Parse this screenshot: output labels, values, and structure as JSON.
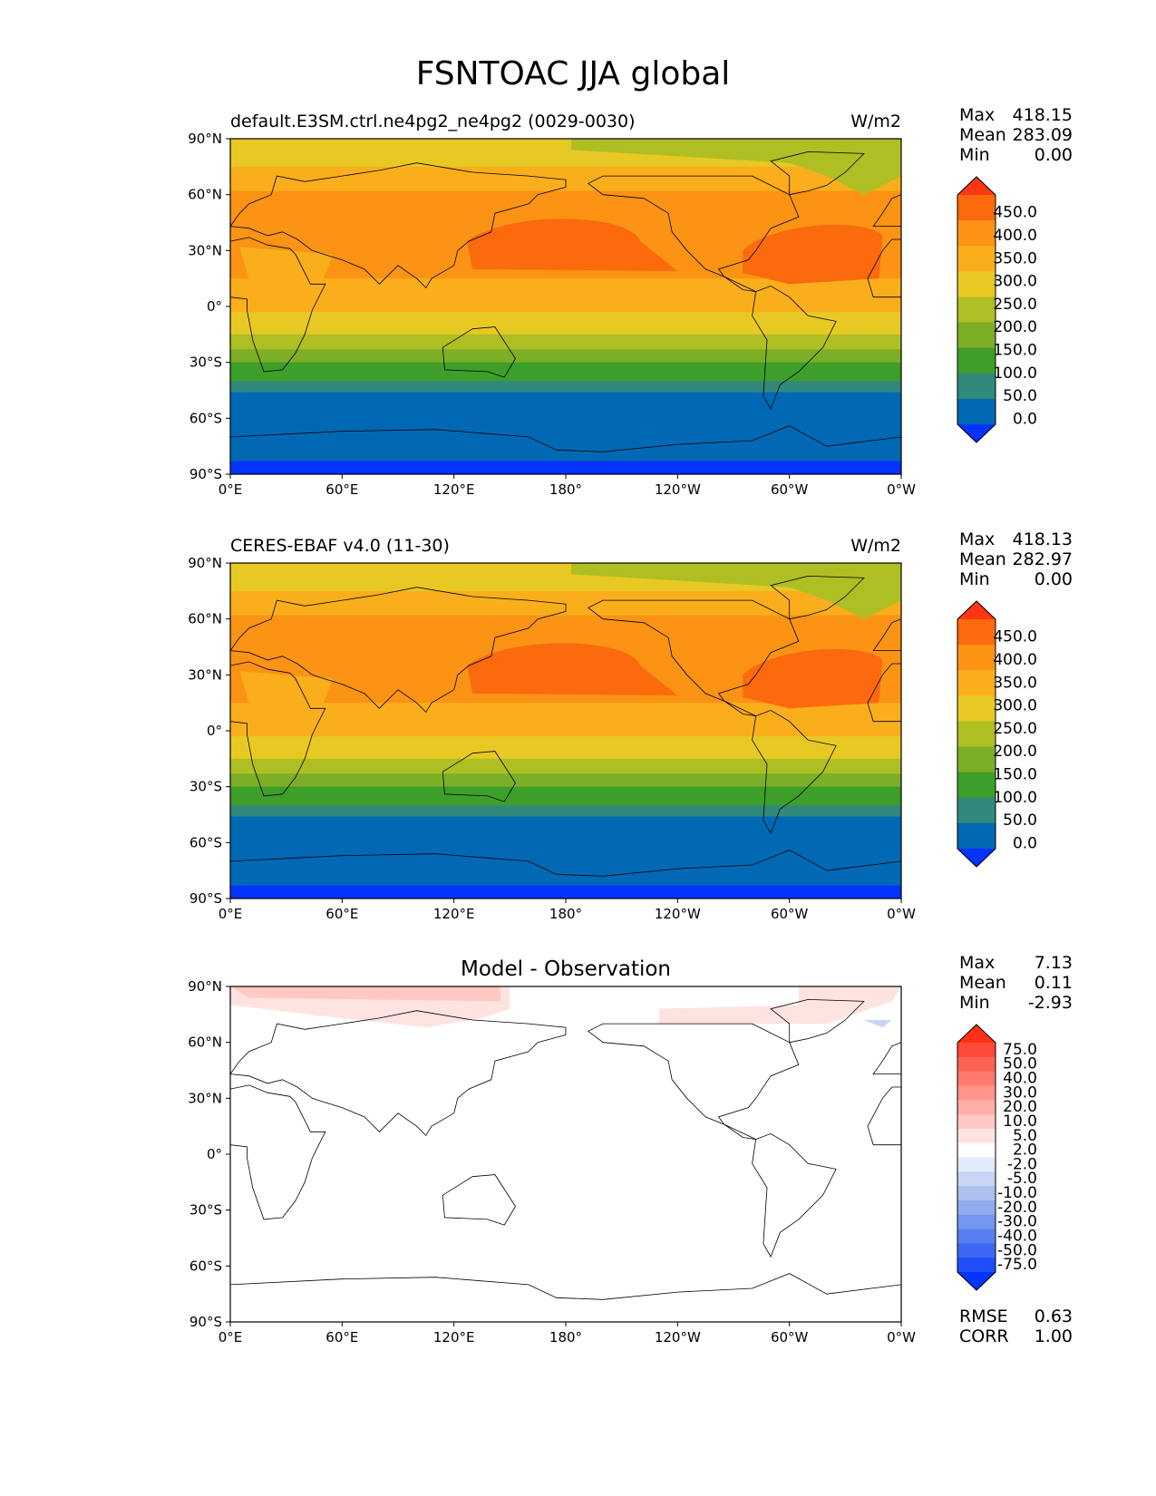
{
  "title": "FSNTOAC JJA global",
  "axes": {
    "lat_ticks": [
      "90°N",
      "60°N",
      "30°N",
      "0°",
      "30°S",
      "60°S",
      "90°S"
    ],
    "lon_ticks": [
      "0°E",
      "60°E",
      "120°E",
      "180°",
      "120°W",
      "60°W",
      "0°W"
    ]
  },
  "stat_labels": {
    "max": "Max",
    "mean": "Mean",
    "min": "Min",
    "rmse": "RMSE",
    "corr": "CORR"
  },
  "colors": {
    "field": [
      "#0432ff",
      "#0169b4",
      "#31897b",
      "#3e9e2a",
      "#7dae27",
      "#aebe23",
      "#e8c923",
      "#fbae1c",
      "#fb9314",
      "#fb6a0d",
      "#ff3616"
    ],
    "diff": [
      "#0432ff",
      "#1f4ff8",
      "#3b67f2",
      "#587fef",
      "#7496ef",
      "#90aced",
      "#acc1ee",
      "#c8d6f3",
      "#e3eafa",
      "#ffffff",
      "#ffe3e0",
      "#ffc8c2",
      "#ffaea6",
      "#ff958a",
      "#ff7b6e",
      "#ff6253",
      "#ff4a39",
      "#ff3016"
    ]
  },
  "panels": [
    {
      "left_title": "default.E3SM.ctrl.ne4pg2_ne4pg2 (0029-0030)",
      "right_title": "W/m2",
      "stats": {
        "max": "418.15",
        "mean": "283.09",
        "min": "0.00"
      },
      "colorbar_ticks": [
        "450.0",
        "400.0",
        "350.0",
        "300.0",
        "250.0",
        "200.0",
        "150.0",
        "100.0",
        "50.0",
        "0.0"
      ]
    },
    {
      "left_title": "CERES-EBAF v4.0 (11-30)",
      "right_title": "W/m2",
      "stats": {
        "max": "418.13",
        "mean": "282.97",
        "min": "0.00"
      },
      "colorbar_ticks": [
        "450.0",
        "400.0",
        "350.0",
        "300.0",
        "250.0",
        "200.0",
        "150.0",
        "100.0",
        "50.0",
        "0.0"
      ]
    },
    {
      "center_title": "Model - Observation",
      "stats": {
        "max": "7.13",
        "mean": "0.11",
        "min": "-2.93",
        "rmse": "0.63",
        "corr": "1.00"
      },
      "colorbar_ticks": [
        "75.0",
        "50.0",
        "40.0",
        "30.0",
        "20.0",
        "10.0",
        "5.0",
        "2.0",
        "-2.0",
        "-5.0",
        "-10.0",
        "-20.0",
        "-30.0",
        "-40.0",
        "-50.0",
        "-75.0"
      ]
    }
  ],
  "chart_data": [
    {
      "type": "heatmap",
      "title": "default.E3SM.ctrl.ne4pg2_ne4pg2 (0029-0030)",
      "units": "W/m2",
      "xlim": [
        0,
        360
      ],
      "ylim": [
        -90,
        90
      ],
      "levels": [
        0,
        50,
        100,
        150,
        200,
        250,
        300,
        350,
        400,
        450
      ],
      "zonal_mean_approx": {
        "lat": [
          90,
          75,
          60,
          45,
          30,
          15,
          0,
          -15,
          -30,
          -45,
          -60,
          -75,
          -85
        ],
        "value": [
          260,
          320,
          345,
          370,
          380,
          350,
          330,
          285,
          225,
          160,
          85,
          40,
          10
        ]
      }
    },
    {
      "type": "heatmap",
      "title": "CERES-EBAF v4.0 (11-30)",
      "units": "W/m2",
      "xlim": [
        0,
        360
      ],
      "ylim": [
        -90,
        90
      ],
      "levels": [
        0,
        50,
        100,
        150,
        200,
        250,
        300,
        350,
        400,
        450
      ],
      "zonal_mean_approx": {
        "lat": [
          90,
          75,
          60,
          45,
          30,
          15,
          0,
          -15,
          -30,
          -45,
          -60,
          -75,
          -85
        ],
        "value": [
          258,
          318,
          344,
          370,
          380,
          350,
          330,
          285,
          225,
          160,
          85,
          40,
          10
        ]
      }
    },
    {
      "type": "heatmap",
      "title": "Model - Observation",
      "xlim": [
        0,
        360
      ],
      "ylim": [
        -90,
        90
      ],
      "levels": [
        -75,
        -50,
        -40,
        -30,
        -20,
        -10,
        -5,
        -2,
        2,
        5,
        10,
        20,
        30,
        40,
        50,
        75
      ]
    }
  ]
}
